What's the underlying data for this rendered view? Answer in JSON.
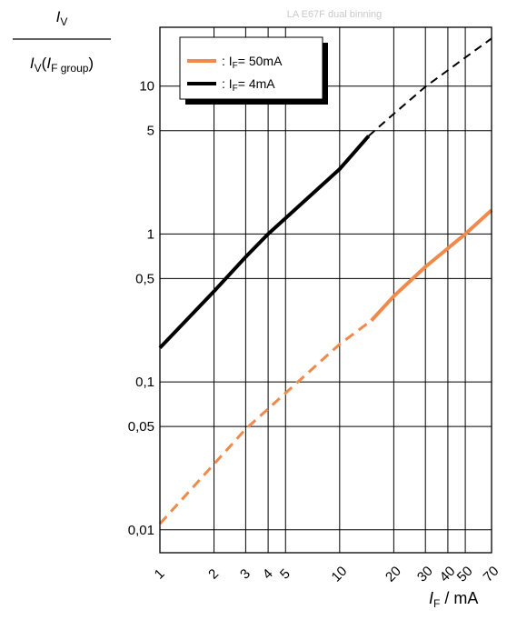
{
  "watermark": "LA E67F dual binning",
  "y_axis_label": {
    "numerator": "I",
    "numerator_sub": "V",
    "denominator_prefix": "I",
    "denominator_sub1": "V",
    "paren_open": "(",
    "denominator_italic": "I",
    "denominator_sub2": "F group",
    "paren_close": ")"
  },
  "x_axis_label": {
    "italic": "I",
    "sub": "F",
    "rest": " / mA"
  },
  "legend": [
    {
      "prefix": ": I",
      "sub": "F",
      "suffix": "= 50mA",
      "color": "#F08A4B"
    },
    {
      "prefix": ": I",
      "sub": "F",
      "suffix": "= 4mA",
      "color": "#000000"
    }
  ],
  "chart_data": {
    "type": "line",
    "x_scale": "log",
    "y_scale": "log",
    "xlim": [
      1,
      70
    ],
    "ylim": [
      0.007,
      25
    ],
    "x_ticks": [
      {
        "value": 1,
        "label": "1"
      },
      {
        "value": 2,
        "label": "2"
      },
      {
        "value": 3,
        "label": "3"
      },
      {
        "value": 4,
        "label": "4"
      },
      {
        "value": 5,
        "label": "5"
      },
      {
        "value": 10,
        "label": "10"
      },
      {
        "value": 20,
        "label": "20"
      },
      {
        "value": 30,
        "label": "30"
      },
      {
        "value": 40,
        "label": "40"
      },
      {
        "value": 50,
        "label": "50"
      },
      {
        "value": 70,
        "label": "70"
      }
    ],
    "y_ticks": [
      {
        "value": 0.01,
        "label": "0,01"
      },
      {
        "value": 0.05,
        "label": "0,05"
      },
      {
        "value": 0.1,
        "label": "0,1"
      },
      {
        "value": 0.5,
        "label": "0,5"
      },
      {
        "value": 1,
        "label": "1"
      },
      {
        "value": 5,
        "label": "5"
      },
      {
        "value": 10,
        "label": "10"
      }
    ],
    "grid": true,
    "series": [
      {
        "name": "IF= 50mA",
        "color": "#F08A4B",
        "dashed_segment": {
          "x": [
            1,
            3,
            10,
            15
          ],
          "y": [
            0.011,
            0.048,
            0.18,
            0.26
          ]
        },
        "solid_segment": {
          "x": [
            15,
            20,
            30,
            50,
            70
          ],
          "y": [
            0.26,
            0.38,
            0.6,
            1.0,
            1.45
          ]
        }
      },
      {
        "name": "IF= 4mA",
        "color": "#000000",
        "solid_segment": {
          "x": [
            1,
            2,
            3,
            4,
            10,
            14.5
          ],
          "y": [
            0.17,
            0.41,
            0.7,
            1.0,
            2.75,
            4.6
          ]
        },
        "dashed_segment": {
          "x": [
            14.5,
            20,
            30,
            50,
            70
          ],
          "y": [
            4.6,
            6.5,
            9.9,
            15.6,
            21
          ]
        }
      }
    ]
  }
}
